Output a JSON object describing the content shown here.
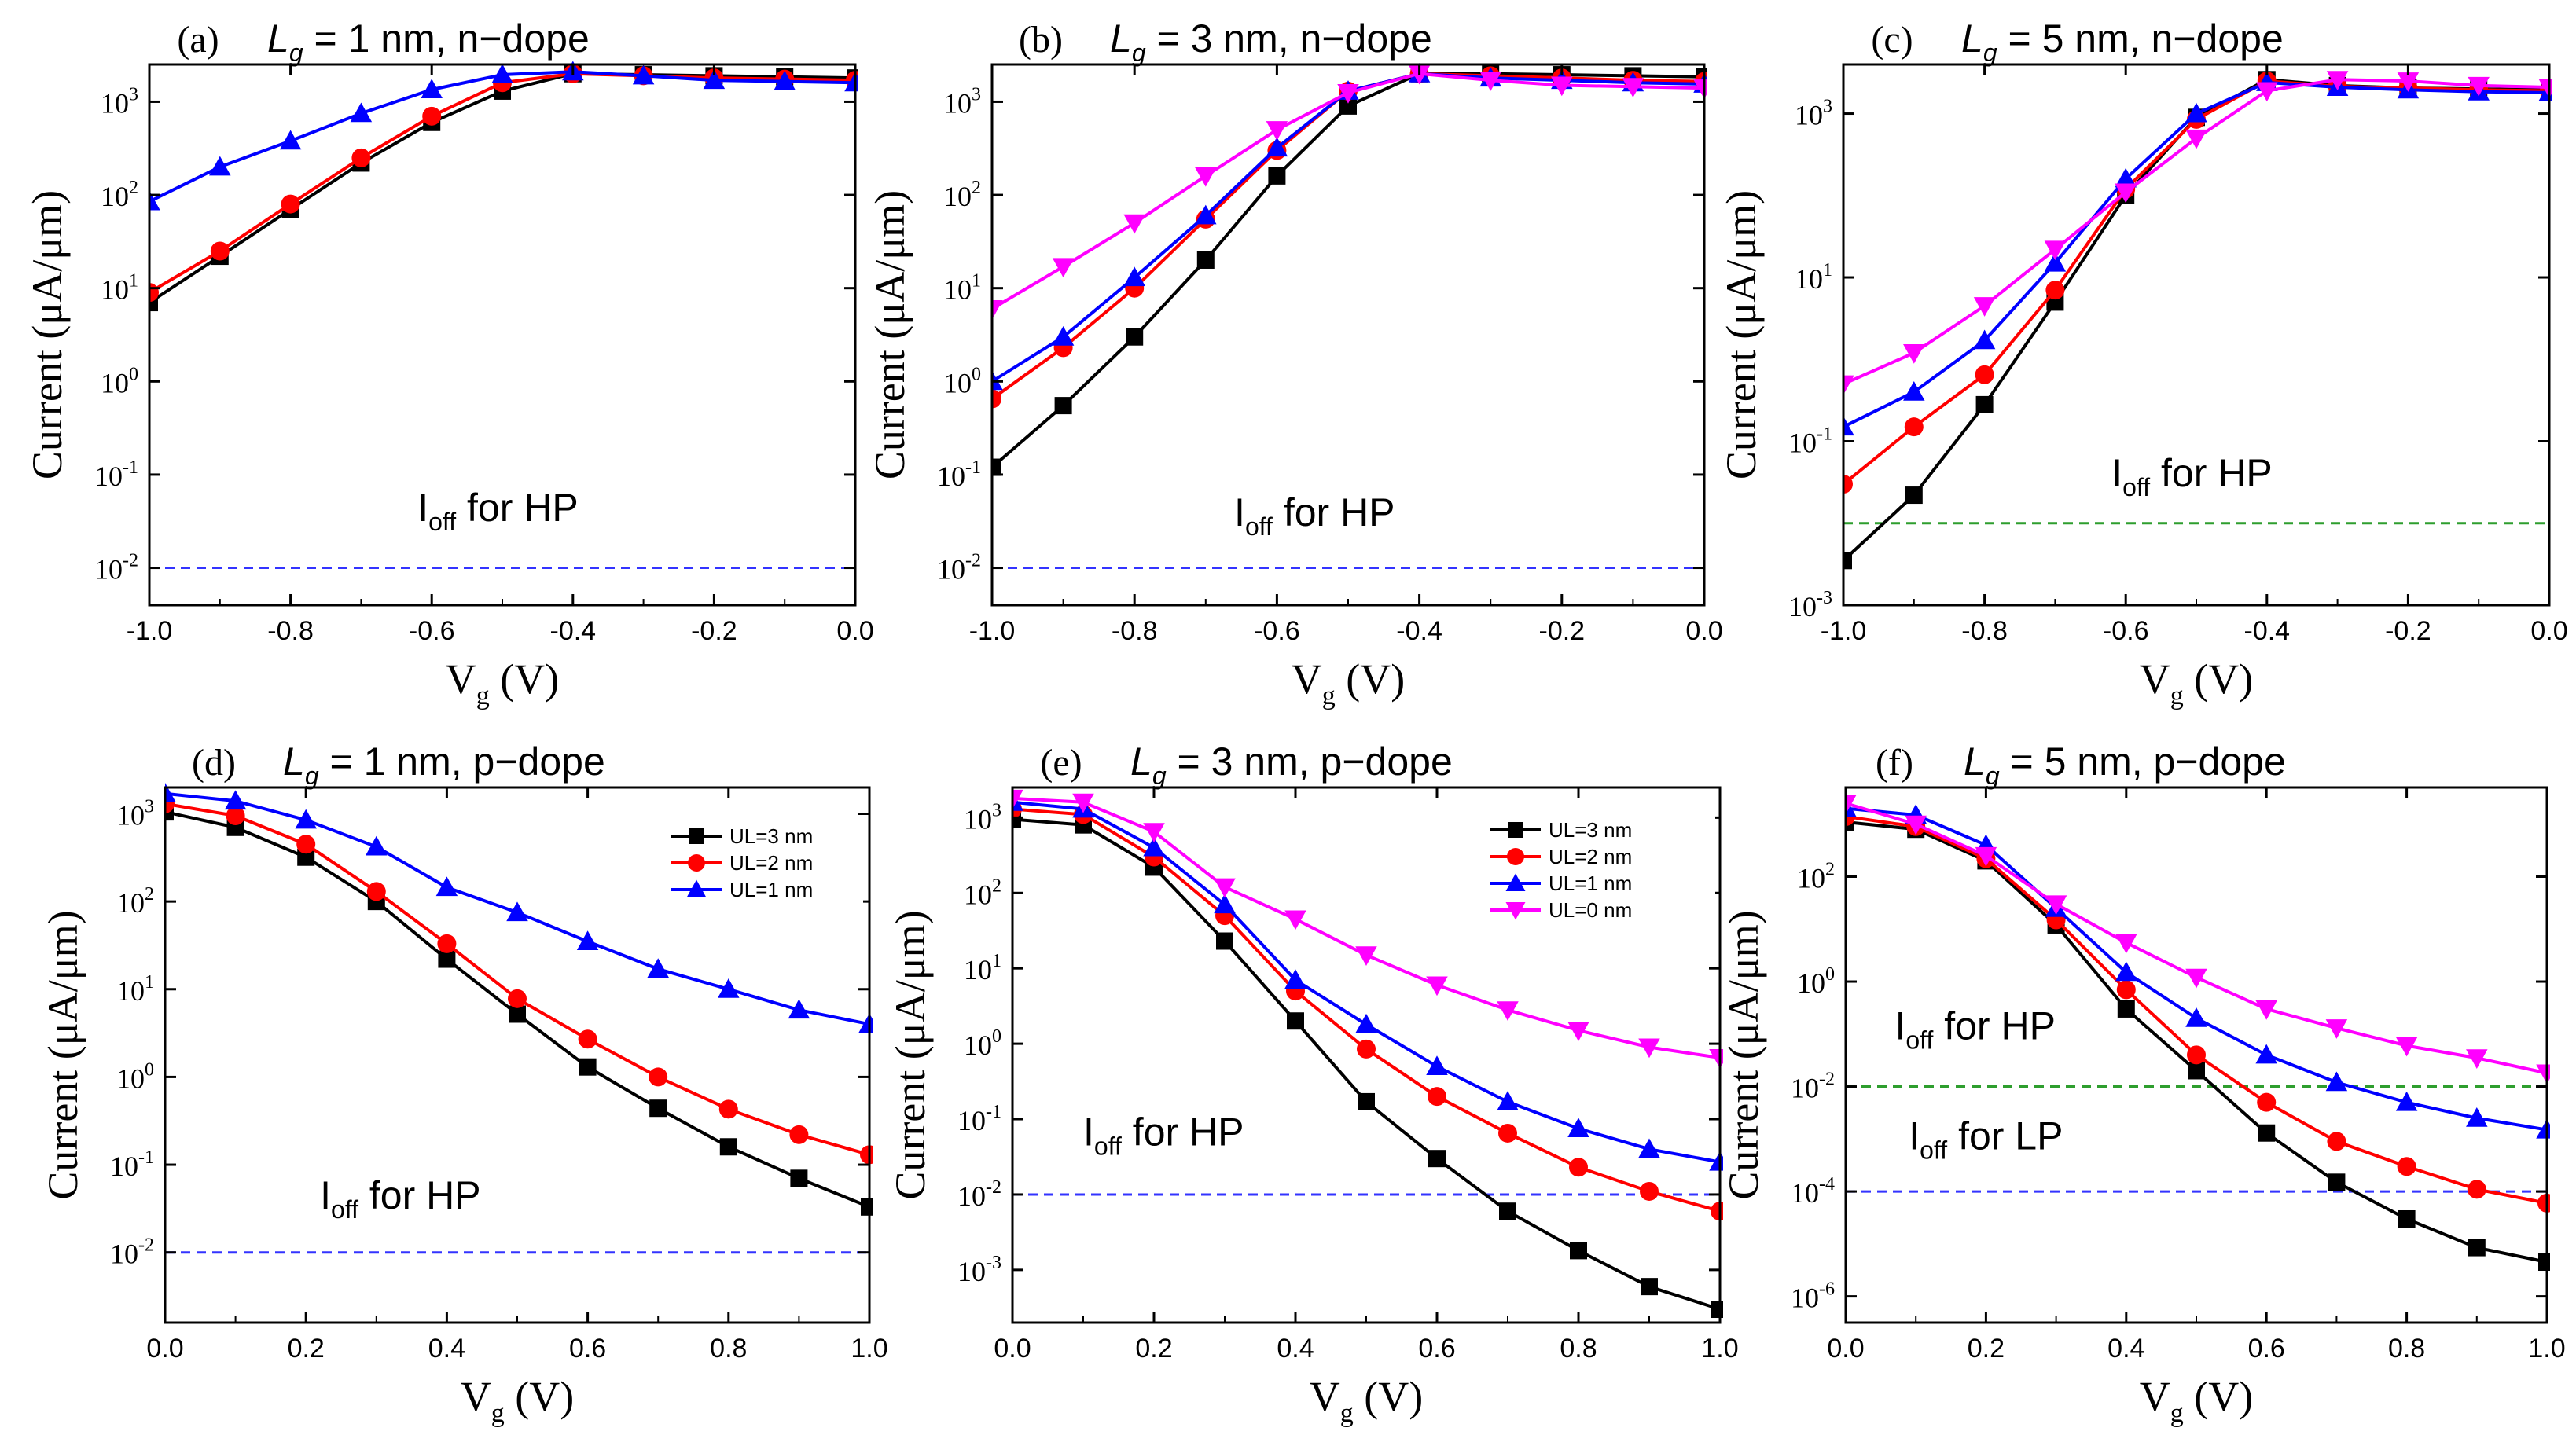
{
  "series_colors": {
    "UL=3 nm": "#000000",
    "UL=2 nm": "#ff0000",
    "UL=1 nm": "#0000ff",
    "UL=0 nm": "#ff00ff"
  },
  "hp_line_color": "#3333ff",
  "lp_line_color": "#3333ff",
  "hp_line_color_green": "#2e9e2e",
  "chart_data": [
    {
      "id": "a",
      "panel_label": "(a)",
      "type": "line",
      "title_parts": {
        "lg": "L",
        "g": "g",
        "rest": "= 1 nm, n−dope"
      },
      "xlabel": "V",
      "xlabel_sub": "g",
      "xlabel_unit": "(V)",
      "ylabel": "Current (μA/μm)",
      "xlim": [
        -1.0,
        0.0
      ],
      "ylim_log10": [
        -2.4,
        3.4
      ],
      "x_ticks": [
        -1.0,
        -0.8,
        -0.6,
        -0.4,
        -0.2,
        0.0
      ],
      "x_tick_labels": [
        "-1.0",
        "-0.8",
        "-0.6",
        "-0.4",
        "-0.2",
        "0.0"
      ],
      "y_ticks": [
        {
          "e": -2,
          "label": "10",
          "exp": "-2"
        },
        {
          "e": -1,
          "label": "10",
          "exp": "-1"
        },
        {
          "e": 0,
          "label": "10",
          "exp": "0"
        },
        {
          "e": 1,
          "label": "10",
          "exp": "1"
        },
        {
          "e": 2,
          "label": "10",
          "exp": "2"
        },
        {
          "e": 3,
          "label": "10",
          "exp": "3"
        }
      ],
      "x": [
        -1.0,
        -0.9,
        -0.8,
        -0.7,
        -0.6,
        -0.5,
        -0.4,
        -0.3,
        -0.2,
        -0.1,
        0.0
      ],
      "series": [
        {
          "name": "UL=3 nm",
          "marker": "square",
          "values": [
            7,
            22,
            70,
            220,
            600,
            1300,
            2000,
            1950,
            1900,
            1850,
            1800
          ]
        },
        {
          "name": "UL=2 nm",
          "marker": "circle",
          "values": [
            9,
            25,
            80,
            250,
            700,
            1600,
            2000,
            1900,
            1800,
            1750,
            1700
          ]
        },
        {
          "name": "UL=1 nm",
          "marker": "triangle-up",
          "values": [
            85,
            200,
            380,
            750,
            1350,
            1950,
            2100,
            1900,
            1700,
            1650,
            1600
          ]
        }
      ],
      "ref_lines": [
        {
          "value": 0.01,
          "label_main": "I",
          "label_sub": "off",
          "label_rest": " for HP",
          "color": "#3333ff",
          "lx": -0.62,
          "ly_log": -1.5
        }
      ],
      "legend": null
    },
    {
      "id": "b",
      "panel_label": "(b)",
      "type": "line",
      "title_parts": {
        "lg": "L",
        "g": "g",
        "rest": "= 3 nm, n−dope"
      },
      "xlabel": "V",
      "xlabel_sub": "g",
      "xlabel_unit": "(V)",
      "ylabel": "Current (μA/μm)",
      "xlim": [
        -1.0,
        0.0
      ],
      "ylim_log10": [
        -2.4,
        3.4
      ],
      "x_ticks": [
        -1.0,
        -0.8,
        -0.6,
        -0.4,
        -0.2,
        0.0
      ],
      "x_tick_labels": [
        "-1.0",
        "-0.8",
        "-0.6",
        "-0.4",
        "-0.2",
        "0.0"
      ],
      "y_ticks": [
        {
          "e": -2,
          "label": "10",
          "exp": "-2"
        },
        {
          "e": -1,
          "label": "10",
          "exp": "-1"
        },
        {
          "e": 0,
          "label": "10",
          "exp": "0"
        },
        {
          "e": 1,
          "label": "10",
          "exp": "1"
        },
        {
          "e": 2,
          "label": "10",
          "exp": "2"
        },
        {
          "e": 3,
          "label": "10",
          "exp": "3"
        }
      ],
      "x": [
        -1.0,
        -0.9,
        -0.8,
        -0.7,
        -0.6,
        -0.5,
        -0.4,
        -0.3,
        -0.2,
        -0.1,
        0.0
      ],
      "series": [
        {
          "name": "UL=3 nm",
          "marker": "square",
          "values": [
            0.12,
            0.55,
            3,
            20,
            160,
            900,
            2000,
            2000,
            1950,
            1900,
            1850
          ]
        },
        {
          "name": "UL=2 nm",
          "marker": "circle",
          "values": [
            0.65,
            2.3,
            10,
            55,
            300,
            1300,
            2000,
            1900,
            1800,
            1700,
            1650
          ]
        },
        {
          "name": "UL=1 nm",
          "marker": "triangle-up",
          "values": [
            1,
            3,
            13,
            60,
            320,
            1300,
            2000,
            1800,
            1700,
            1600,
            1550
          ]
        },
        {
          "name": "UL=0 nm",
          "marker": "triangle-down",
          "values": [
            6,
            17,
            50,
            160,
            500,
            1250,
            2000,
            1700,
            1500,
            1450,
            1400
          ]
        }
      ],
      "ref_lines": [
        {
          "value": 0.01,
          "label_main": "I",
          "label_sub": "off",
          "label_rest": " for HP",
          "color": "#3333ff",
          "lx": -0.66,
          "ly_log": -1.55
        }
      ],
      "legend": null
    },
    {
      "id": "c",
      "panel_label": "(c)",
      "type": "line",
      "title_parts": {
        "lg": "L",
        "g": "g",
        "rest": "= 5 nm, n−dope"
      },
      "xlabel": "V",
      "xlabel_sub": "g",
      "xlabel_unit": "(V)",
      "ylabel": "Current (μA/μm)",
      "xlim": [
        -1.0,
        0.0
      ],
      "ylim_log10": [
        -3.0,
        3.6
      ],
      "x_ticks": [
        -1.0,
        -0.8,
        -0.6,
        -0.4,
        -0.2,
        0.0
      ],
      "x_tick_labels": [
        "-1.0",
        "-0.8",
        "-0.6",
        "-0.4",
        "-0.2",
        "0.0"
      ],
      "y_ticks": [
        {
          "e": -3,
          "label": "10",
          "exp": "-3"
        },
        {
          "e": -1,
          "label": "10",
          "exp": "-1"
        },
        {
          "e": 1,
          "label": "10",
          "exp": "1"
        },
        {
          "e": 3,
          "label": "10",
          "exp": "3"
        }
      ],
      "x": [
        -1.0,
        -0.9,
        -0.8,
        -0.7,
        -0.6,
        -0.5,
        -0.4,
        -0.3,
        -0.2,
        -0.1,
        0.0
      ],
      "series": [
        {
          "name": "UL=3 nm",
          "marker": "square",
          "values": [
            0.0035,
            0.022,
            0.28,
            5,
            100,
            900,
            2600,
            2200,
            2050,
            2000,
            1950
          ]
        },
        {
          "name": "UL=2 nm",
          "marker": "circle",
          "values": [
            0.03,
            0.15,
            0.65,
            7,
            120,
            850,
            2500,
            2150,
            2050,
            1950,
            1900
          ]
        },
        {
          "name": "UL=1 nm",
          "marker": "triangle-up",
          "values": [
            0.15,
            0.4,
            1.7,
            15,
            160,
            1000,
            2400,
            2100,
            1950,
            1850,
            1800
          ]
        },
        {
          "name": "UL=0 nm",
          "marker": "triangle-down",
          "values": [
            0.5,
            1.2,
            4.5,
            22,
            110,
            500,
            1900,
            2600,
            2500,
            2200,
            2100
          ]
        }
      ],
      "ref_lines": [
        {
          "value": 0.01,
          "label_main": "I",
          "label_sub": "off",
          "label_rest": " for HP",
          "color": "#2e9e2e",
          "lx": -0.62,
          "ly_log": -1.55
        }
      ],
      "legend": null
    },
    {
      "id": "d",
      "panel_label": "(d)",
      "type": "line",
      "title_parts": {
        "lg": "L",
        "g": "g",
        "rest": "= 1 nm, p−dope"
      },
      "xlabel": "V",
      "xlabel_sub": "g",
      "xlabel_unit": "(V)",
      "ylabel": "Current (μA/μm)",
      "xlim": [
        0.0,
        1.0
      ],
      "ylim_log10": [
        -2.8,
        3.3
      ],
      "x_ticks": [
        0.0,
        0.2,
        0.4,
        0.6,
        0.8,
        1.0
      ],
      "x_tick_labels": [
        "0.0",
        "0.2",
        "0.4",
        "0.6",
        "0.8",
        "1.0"
      ],
      "y_ticks": [
        {
          "e": -2,
          "label": "10",
          "exp": "-2"
        },
        {
          "e": -1,
          "label": "10",
          "exp": "-1"
        },
        {
          "e": 0,
          "label": "10",
          "exp": "0"
        },
        {
          "e": 1,
          "label": "10",
          "exp": "1"
        },
        {
          "e": 2,
          "label": "10",
          "exp": "2"
        },
        {
          "e": 3,
          "label": "10",
          "exp": "3"
        }
      ],
      "x": [
        0.0,
        0.1,
        0.2,
        0.3,
        0.4,
        0.5,
        0.6,
        0.7,
        0.8,
        0.9,
        1.0
      ],
      "series": [
        {
          "name": "UL=3 nm",
          "marker": "square",
          "values": [
            1050,
            700,
            320,
            100,
            22,
            5.2,
            1.3,
            0.44,
            0.16,
            0.07,
            0.033
          ]
        },
        {
          "name": "UL=2 nm",
          "marker": "circle",
          "values": [
            1300,
            950,
            450,
            130,
            33,
            7.8,
            2.7,
            1,
            0.43,
            0.22,
            0.13
          ]
        },
        {
          "name": "UL=1 nm",
          "marker": "triangle-up",
          "values": [
            1700,
            1400,
            850,
            420,
            145,
            75,
            35,
            17,
            10,
            5.8,
            4
          ]
        }
      ],
      "ref_lines": [
        {
          "value": 0.01,
          "label_main": "I",
          "label_sub": "off",
          "label_rest": " for HP",
          "color": "#3333ff",
          "lx": 0.22,
          "ly_log": -1.5
        }
      ],
      "legend": {
        "location": "top-right",
        "entries": [
          "UL=3 nm",
          "UL=2 nm",
          "UL=1 nm"
        ]
      }
    },
    {
      "id": "e",
      "panel_label": "(e)",
      "type": "line",
      "title_parts": {
        "lg": "L",
        "g": "g",
        "rest": "= 3 nm, p−dope"
      },
      "xlabel": "V",
      "xlabel_sub": "g",
      "xlabel_unit": "(V)",
      "ylabel": "Current (μA/μm)",
      "xlim": [
        0.0,
        1.0
      ],
      "ylim_log10": [
        -3.7,
        3.4
      ],
      "x_ticks": [
        0.0,
        0.2,
        0.4,
        0.6,
        0.8,
        1.0
      ],
      "x_tick_labels": [
        "0.0",
        "0.2",
        "0.4",
        "0.6",
        "0.8",
        "1.0"
      ],
      "y_ticks": [
        {
          "e": -3,
          "label": "10",
          "exp": "-3"
        },
        {
          "e": -2,
          "label": "10",
          "exp": "-2"
        },
        {
          "e": -1,
          "label": "10",
          "exp": "-1"
        },
        {
          "e": 0,
          "label": "10",
          "exp": "0"
        },
        {
          "e": 1,
          "label": "10",
          "exp": "1"
        },
        {
          "e": 2,
          "label": "10",
          "exp": "2"
        },
        {
          "e": 3,
          "label": "10",
          "exp": "3"
        }
      ],
      "x": [
        0.0,
        0.1,
        0.2,
        0.3,
        0.4,
        0.5,
        0.6,
        0.7,
        0.8,
        0.9,
        1.0
      ],
      "series": [
        {
          "name": "UL=3 nm",
          "marker": "square",
          "values": [
            950,
            800,
            220,
            23,
            2,
            0.17,
            0.03,
            0.006,
            0.0018,
            0.0006,
            0.0003
          ]
        },
        {
          "name": "UL=2 nm",
          "marker": "circle",
          "values": [
            1300,
            1100,
            300,
            50,
            5,
            0.85,
            0.2,
            0.065,
            0.023,
            0.011,
            0.006
          ]
        },
        {
          "name": "UL=1 nm",
          "marker": "triangle-up",
          "values": [
            1600,
            1300,
            400,
            70,
            7,
            1.8,
            0.5,
            0.17,
            0.075,
            0.04,
            0.027
          ]
        },
        {
          "name": "UL=0 nm",
          "marker": "triangle-down",
          "values": [
            1800,
            1600,
            650,
            120,
            45,
            15,
            6,
            2.8,
            1.5,
            0.9,
            0.65
          ]
        }
      ],
      "ref_lines": [
        {
          "value": 0.01,
          "label_main": "I",
          "label_sub": "off",
          "label_rest": " for HP",
          "color": "#3333ff",
          "lx": 0.1,
          "ly_log": -1.35
        }
      ],
      "legend": {
        "location": "top-right",
        "entries": [
          "UL=3 nm",
          "UL=2 nm",
          "UL=1 nm",
          "UL=0 nm"
        ]
      }
    },
    {
      "id": "f",
      "panel_label": "(f)",
      "type": "line",
      "title_parts": {
        "lg": "L",
        "g": "g",
        "rest": "= 5 nm, p−dope"
      },
      "xlabel": "V",
      "xlabel_sub": "g",
      "xlabel_unit": "(V)",
      "ylabel": "Current (μA/μm)",
      "xlim": [
        0.0,
        1.0
      ],
      "ylim_log10": [
        -6.5,
        3.7
      ],
      "x_ticks": [
        0.0,
        0.2,
        0.4,
        0.6,
        0.8,
        1.0
      ],
      "x_tick_labels": [
        "0.0",
        "0.2",
        "0.4",
        "0.6",
        "0.8",
        "1.0"
      ],
      "y_ticks": [
        {
          "e": -6,
          "label": "10",
          "exp": "-6"
        },
        {
          "e": -4,
          "label": "10",
          "exp": "-4"
        },
        {
          "e": -2,
          "label": "10",
          "exp": "-2"
        },
        {
          "e": 0,
          "label": "10",
          "exp": "0"
        },
        {
          "e": 2,
          "label": "10",
          "exp": "2"
        }
      ],
      "x": [
        0.0,
        0.1,
        0.2,
        0.3,
        0.4,
        0.5,
        0.6,
        0.7,
        0.8,
        0.9,
        1.0
      ],
      "series": [
        {
          "name": "UL=3 nm",
          "marker": "square",
          "values": [
            1100,
            800,
            200,
            12,
            0.3,
            0.02,
            0.0013,
            0.00015,
            3e-05,
            8.5e-06,
            4.5e-06
          ]
        },
        {
          "name": "UL=2 nm",
          "marker": "circle",
          "values": [
            1400,
            900,
            220,
            15,
            0.7,
            0.04,
            0.005,
            0.0009,
            0.0003,
            0.00011,
            6e-05
          ]
        },
        {
          "name": "UL=1 nm",
          "marker": "triangle-up",
          "values": [
            2000,
            1500,
            400,
            25,
            1.5,
            0.2,
            0.04,
            0.012,
            0.005,
            0.0025,
            0.0015
          ]
        },
        {
          "name": "UL=0 nm",
          "marker": "triangle-down",
          "values": [
            2500,
            1000,
            250,
            30,
            5.5,
            1.2,
            0.3,
            0.13,
            0.06,
            0.035,
            0.018
          ]
        }
      ],
      "ref_lines": [
        {
          "value": 0.01,
          "label_main": "I",
          "label_sub": "off",
          "label_rest": " for HP",
          "color": "#2e9e2e",
          "lx": 0.07,
          "ly_log": -1.1
        },
        {
          "value": 0.0001,
          "label_main": "I",
          "label_sub": "off",
          "label_rest": " for LP",
          "color": "#3333ff",
          "lx": 0.09,
          "ly_log": -3.2
        }
      ],
      "legend": null
    }
  ]
}
